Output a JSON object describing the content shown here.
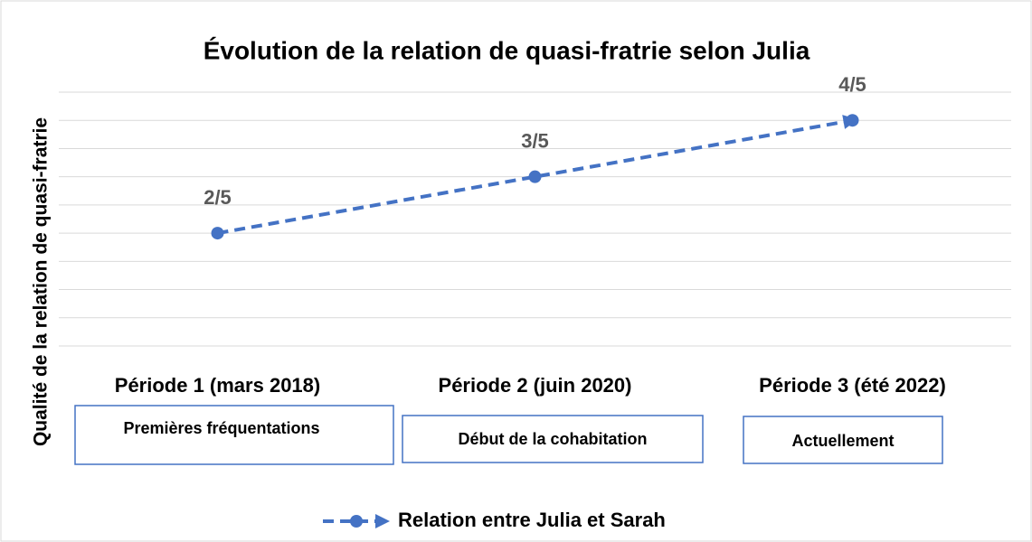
{
  "chart_data": {
    "type": "line",
    "title": "Évolution de la relation de quasi-fratrie selon Julia",
    "y_label": "Qualité de la relation de quasi-fratrie",
    "categories": [
      "Période 1 (mars 2018)",
      "Période 2 (juin 2020)",
      "Période 3 (été 2022)"
    ],
    "series": [
      {
        "name": "Relation entre Julia et Sarah",
        "color": "#4472c4",
        "values": [
          2,
          3,
          4
        ],
        "value_labels": [
          "2/5",
          "3/5",
          "4/5"
        ]
      }
    ],
    "annotations": [
      "Premières fréquentations",
      "Début de la cohabitation",
      "Actuellement"
    ],
    "ylim": [
      0,
      4.5
    ],
    "yticks": [
      0,
      0.5,
      1,
      1.5,
      2,
      2.5,
      3,
      3.5,
      4,
      4.5
    ],
    "grid": true,
    "legend": "bottom"
  }
}
